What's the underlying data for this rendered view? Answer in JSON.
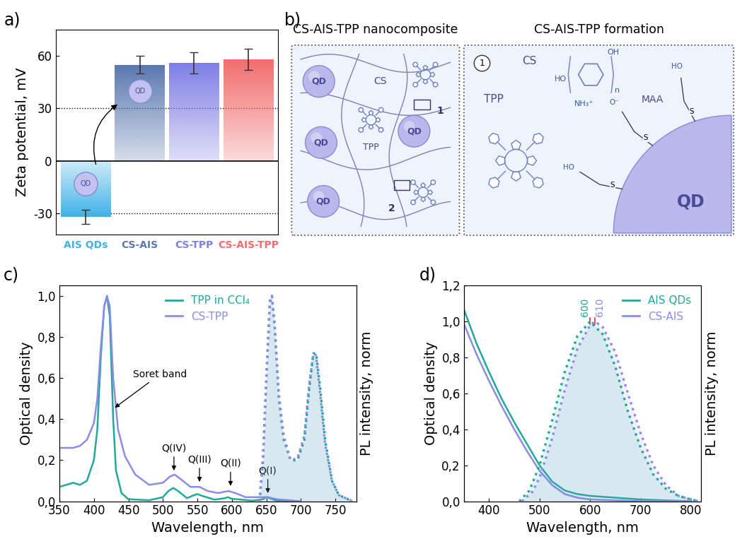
{
  "panel_labels": [
    "a)",
    "b)",
    "c)",
    "d)"
  ],
  "chart_data": [
    {
      "type": "bar",
      "categories": [
        "AIS QDs",
        "CS-AIS",
        "CS-TPP",
        "CS-AIS-TPP"
      ],
      "values": [
        -32,
        55,
        56,
        58
      ],
      "errors": [
        4,
        5,
        6,
        6
      ],
      "colors": [
        "#3fb2e8",
        "#5a78b0",
        "#7f7fe6",
        "#f26d6d"
      ],
      "y_label": "Zeta potential, mV",
      "ylim": [
        -42,
        75
      ],
      "yticks": [
        -30,
        0,
        30,
        60
      ],
      "dashed_lines": [
        -30,
        30
      ],
      "zero_line": 0,
      "icon_label": "QD"
    },
    {
      "type": "line",
      "x_label": "Wavelength, nm",
      "y_label": "Optical density",
      "y2_label": "PL intensity, norm",
      "xlim": [
        350,
        780
      ],
      "xticks": [
        350,
        400,
        450,
        500,
        550,
        600,
        650,
        700,
        750
      ],
      "ylim": [
        0,
        1.05
      ],
      "yticks": [
        {
          "value": 0,
          "label": "0,0"
        },
        {
          "value": 0.2,
          "label": "0,2"
        },
        {
          "value": 0.4,
          "label": "0,4"
        },
        {
          "value": 0.6,
          "label": "0,6"
        },
        {
          "value": 0.8,
          "label": "0,8"
        },
        {
          "value": 1.0,
          "label": "1,0"
        }
      ],
      "y2lim": [
        0,
        1.05
      ],
      "y2ticks": [],
      "legend": "upper center",
      "series": [
        {
          "name": "TPP in CCl₄",
          "color": "#20a99b",
          "line_style": "solid",
          "x": [
            350,
            360,
            370,
            380,
            390,
            400,
            405,
            410,
            415,
            419,
            423,
            428,
            432,
            440,
            450,
            480,
            500,
            508,
            515,
            522,
            535,
            545,
            550,
            558,
            575,
            590,
            594,
            600,
            630,
            645,
            650,
            655,
            665,
            700
          ],
          "values": [
            0.07,
            0.08,
            0.09,
            0.08,
            0.1,
            0.2,
            0.35,
            0.7,
            0.95,
            1.0,
            0.9,
            0.4,
            0.15,
            0.04,
            0.01,
            0.005,
            0.02,
            0.05,
            0.065,
            0.05,
            0.015,
            0.03,
            0.035,
            0.025,
            0.008,
            0.015,
            0.02,
            0.012,
            0.003,
            0.01,
            0.02,
            0.015,
            0.002,
            0.0
          ]
        },
        {
          "name": "CS-TPP",
          "color": "#8c8ce6",
          "line_style": "solid",
          "x": [
            350,
            360,
            370,
            380,
            390,
            400,
            405,
            410,
            415,
            419,
            423,
            428,
            435,
            445,
            460,
            480,
            500,
            510,
            517,
            525,
            540,
            553,
            565,
            580,
            595,
            605,
            620,
            640,
            652,
            665,
            700
          ],
          "values": [
            0.26,
            0.26,
            0.26,
            0.27,
            0.3,
            0.38,
            0.5,
            0.75,
            0.95,
            1.0,
            0.95,
            0.6,
            0.35,
            0.22,
            0.13,
            0.08,
            0.09,
            0.12,
            0.13,
            0.11,
            0.07,
            0.07,
            0.05,
            0.04,
            0.05,
            0.04,
            0.02,
            0.02,
            0.02,
            0.01,
            0.0
          ]
        },
        {
          "color": "#20a99b",
          "line_style": "dotted",
          "axis": "y2",
          "x": [
            640,
            645,
            650,
            655,
            658,
            662,
            668,
            675,
            685,
            695,
            705,
            712,
            718,
            722,
            728,
            735,
            745,
            755,
            775
          ],
          "values": [
            0,
            0.2,
            0.6,
            0.97,
            1.0,
            0.85,
            0.5,
            0.3,
            0.2,
            0.2,
            0.3,
            0.55,
            0.72,
            0.72,
            0.55,
            0.3,
            0.1,
            0.03,
            0
          ]
        },
        {
          "color": "#8c8ce6",
          "line_style": "dotted",
          "axis": "y2",
          "x": [
            640,
            645,
            650,
            655,
            658,
            662,
            668,
            675,
            685,
            695,
            705,
            712,
            718,
            722,
            728,
            735,
            745,
            755,
            775
          ],
          "values": [
            0,
            0.22,
            0.62,
            0.98,
            1.0,
            0.86,
            0.52,
            0.32,
            0.2,
            0.21,
            0.32,
            0.57,
            0.72,
            0.71,
            0.52,
            0.28,
            0.1,
            0.03,
            0
          ]
        }
      ],
      "annotations": [
        {
          "text": "Soret band",
          "x": 428,
          "y": 0.45
        },
        {
          "text": "Q(IV)",
          "x": 516,
          "y": 0.14
        },
        {
          "text": "Q(III)",
          "x": 553,
          "y": 0.085
        },
        {
          "text": "Q(II)",
          "x": 598,
          "y": 0.065
        },
        {
          "text": "Q(I)",
          "x": 652,
          "y": 0.03
        }
      ]
    },
    {
      "type": "line",
      "x_label": "Wavelength, nm",
      "y_label": "Optical density",
      "y2_label": "PL intensity, norm",
      "xlim": [
        350,
        820
      ],
      "xticks": [
        400,
        500,
        600,
        700,
        800
      ],
      "ylim": [
        0,
        1.2
      ],
      "yticks": [
        {
          "value": 0,
          "label": "0,0"
        },
        {
          "value": 0.2,
          "label": "0,2"
        },
        {
          "value": 0.4,
          "label": "0,4"
        },
        {
          "value": 0.6,
          "label": "0,6"
        },
        {
          "value": 0.8,
          "label": "0,8"
        },
        {
          "value": 1.0,
          "label": "1,0"
        },
        {
          "value": 1.2,
          "label": "1,2"
        }
      ],
      "y2lim": [
        0,
        1.2
      ],
      "y2ticks": [],
      "legend": "upper right",
      "series": [
        {
          "name": "AIS QDs",
          "color": "#20a99b",
          "line_style": "solid",
          "x": [
            350,
            375,
            400,
            425,
            450,
            475,
            500,
            525,
            550,
            575,
            600,
            650,
            700,
            800
          ],
          "values": [
            1.07,
            0.88,
            0.72,
            0.57,
            0.44,
            0.32,
            0.2,
            0.11,
            0.06,
            0.04,
            0.03,
            0.02,
            0.01,
            0.0
          ]
        },
        {
          "name": "CS-AIS",
          "color": "#8c8ce6",
          "line_style": "solid",
          "x": [
            350,
            375,
            400,
            425,
            450,
            475,
            500,
            525,
            550,
            575,
            600,
            650,
            700,
            800
          ],
          "values": [
            0.99,
            0.82,
            0.67,
            0.53,
            0.4,
            0.28,
            0.17,
            0.09,
            0.04,
            0.02,
            0.01,
            0.005,
            0.0,
            0.0
          ]
        },
        {
          "color": "#20a99b",
          "line_style": "dotted",
          "axis": "y2",
          "x": [
            460,
            480,
            500,
            525,
            550,
            575,
            600,
            625,
            650,
            675,
            700,
            725,
            750,
            775,
            800,
            815
          ],
          "values": [
            0,
            0.06,
            0.2,
            0.45,
            0.72,
            0.92,
            1.0,
            0.93,
            0.75,
            0.5,
            0.3,
            0.15,
            0.07,
            0.03,
            0.01,
            0
          ]
        },
        {
          "color": "#8c8ce6",
          "line_style": "dotted",
          "axis": "y2",
          "x": [
            465,
            485,
            500,
            525,
            550,
            575,
            600,
            610,
            625,
            650,
            675,
            700,
            725,
            750,
            775,
            800,
            815
          ],
          "values": [
            0,
            0.05,
            0.13,
            0.35,
            0.62,
            0.85,
            0.98,
            1.0,
            0.97,
            0.83,
            0.6,
            0.38,
            0.2,
            0.09,
            0.03,
            0.01,
            0
          ]
        }
      ],
      "peak_labels": [
        {
          "text": "600",
          "x": 600
        },
        {
          "text": "610",
          "x": 610
        }
      ]
    }
  ],
  "diagram": {
    "left_box": {
      "title": "CS-AIS-TPP nanocomposite",
      "polymer": "CS",
      "porphyrin": "TPP",
      "qd": "QD",
      "markers": [
        "1",
        "2"
      ]
    },
    "right_box": {
      "title": "CS-AIS-TPP formation",
      "step": "1",
      "polymer": "CS",
      "porphyrin": "TPP",
      "ligand": "MAA",
      "qd": "QD",
      "chitosan_texts": {
        "hydroxyl_right": "OH",
        "hydroxyl_left": "HO",
        "amine": "NH₃⁺",
        "repeat": "n"
      },
      "ligand_texts": {
        "sulfur": "S",
        "end_free": "HO",
        "end_bound": "O⁻"
      }
    }
  }
}
